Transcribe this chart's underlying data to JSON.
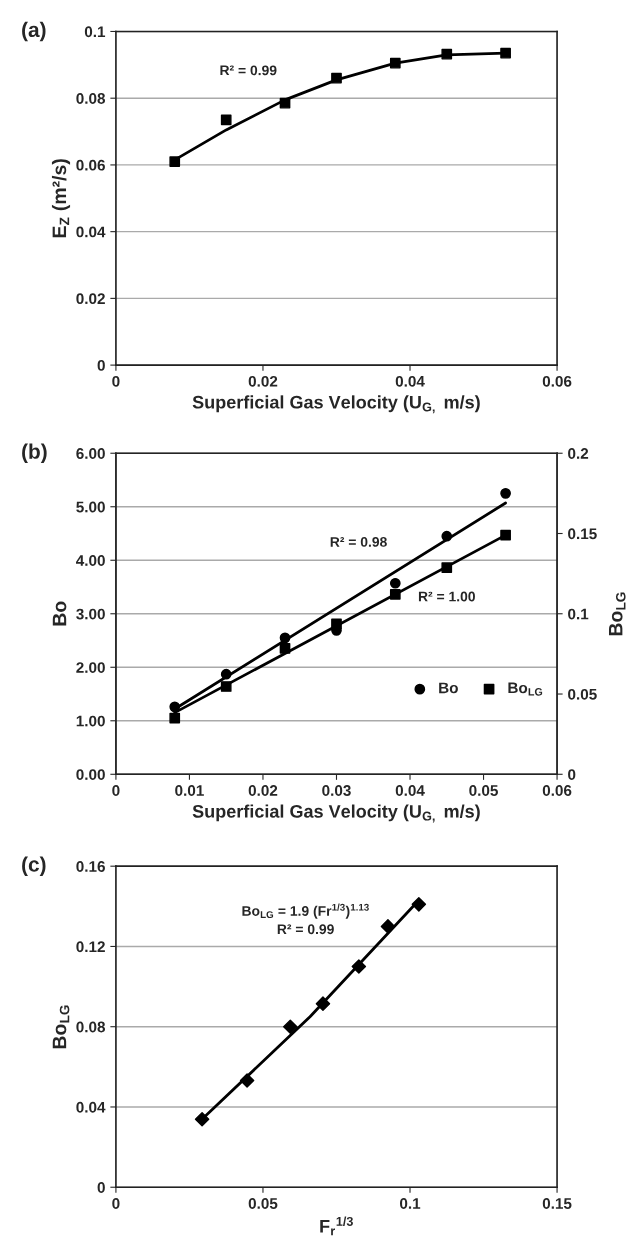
{
  "chart_data": [
    {
      "type": "scatter",
      "title": "(a)",
      "xlabel": "Superficial Gas Velocity (U$_{G,}$ m/s)",
      "ylabel": "E$_{Z}$ (m²/s)",
      "annotations": [
        "R² = 0.99"
      ],
      "xlim": [
        0,
        0.06
      ],
      "xticks": [
        0,
        0.02,
        0.04,
        0.06
      ],
      "ylim": [
        0,
        0.1
      ],
      "yticks": [
        0,
        0.02,
        0.04,
        0.06,
        0.08,
        0.1
      ],
      "grid": "y",
      "legend": false,
      "series": [
        {
          "marker": "square",
          "color": "#000000",
          "x": [
            0.008,
            0.015,
            0.023,
            0.03,
            0.038,
            0.045,
            0.053
          ],
          "values": [
            0.061,
            0.0735,
            0.0785,
            0.086,
            0.0905,
            0.0932,
            0.0935
          ]
        },
        {
          "type": "line",
          "marker": "none",
          "color": "#000000",
          "x": [
            0.008,
            0.015,
            0.023,
            0.03,
            0.038,
            0.045,
            0.053
          ],
          "values": [
            0.0615,
            0.0705,
            0.0795,
            0.0855,
            0.0905,
            0.093,
            0.0935
          ]
        }
      ]
    },
    {
      "type": "scatter",
      "title": "(b)",
      "xlabel": "Superficial Gas Velocity (U$_{G,}$ m/s)",
      "ylabel": "Bo",
      "y2label": "Bo$_{LG}$",
      "annotations": [
        "R² = 0.98",
        "R² = 1.00"
      ],
      "xlim": [
        0,
        0.06
      ],
      "xticks": [
        0,
        0.01,
        0.02,
        0.03,
        0.04,
        0.05,
        0.06
      ],
      "ylim": [
        0,
        6
      ],
      "yticks": [
        {
          "value": 0,
          "label": "0.00"
        },
        {
          "value": 1,
          "label": "1.00"
        },
        {
          "value": 2,
          "label": "2.00"
        },
        {
          "value": 3,
          "label": "3.00"
        },
        {
          "value": 4,
          "label": "4.00"
        },
        {
          "value": 5,
          "label": "5.00"
        },
        {
          "value": 6,
          "label": "6.00"
        }
      ],
      "y2lim": [
        0,
        0.2
      ],
      "y2ticks": [
        0,
        0.05,
        0.1,
        0.15,
        0.2
      ],
      "grid": "y",
      "legend": "bottom right",
      "series": [
        {
          "name": "Bo",
          "marker": "circle",
          "color": "#000000",
          "x": [
            0.008,
            0.015,
            0.023,
            0.03,
            0.038,
            0.045,
            0.053
          ],
          "values": [
            1.26,
            1.87,
            2.55,
            2.69,
            3.57,
            4.45,
            5.25
          ]
        },
        {
          "name": "Bo$_{LG}$",
          "axis": "y2",
          "marker": "square",
          "color": "#000000",
          "x": [
            0.008,
            0.015,
            0.023,
            0.03,
            0.038,
            0.045,
            0.053
          ],
          "values": [
            0.035,
            0.0547,
            0.0784,
            0.0937,
            0.1121,
            0.1287,
            0.149
          ]
        },
        {
          "type": "line",
          "marker": "none",
          "color": "#000000",
          "x": [
            0.008,
            0.053
          ],
          "values": [
            1.22,
            5.07
          ]
        },
        {
          "type": "line",
          "axis": "y2",
          "marker": "none",
          "color": "#000000",
          "x": [
            0.008,
            0.053
          ],
          "values": [
            0.0384,
            0.149
          ]
        }
      ]
    },
    {
      "type": "scatter",
      "title": "(c)",
      "xlabel": "F$_{r}$$^{1/3}$",
      "ylabel": "Bo$_{LG}$",
      "annotations": [
        "Bo$_{LG}$ = 1.9 (Fr$^{1/3}$)$^{1.13}$",
        "R² = 0.99"
      ],
      "xlim": [
        0,
        0.15
      ],
      "xticks": [
        0,
        0.05,
        0.1,
        0.15
      ],
      "ylim": [
        0,
        0.16
      ],
      "yticks": [
        0,
        0.04,
        0.08,
        0.12,
        0.16
      ],
      "grid": "y",
      "legend": false,
      "series": [
        {
          "marker": "diamond",
          "color": "#000000",
          "x": [
            0.0293,
            0.0446,
            0.0593,
            0.0704,
            0.0826,
            0.0925,
            0.103
          ],
          "values": [
            0.0339,
            0.0532,
            0.08,
            0.0915,
            0.11,
            0.13,
            0.141
          ]
        },
        {
          "type": "line",
          "marker": "none",
          "color": "#000000",
          "x": [
            0.029,
            0.066,
            0.103
          ],
          "values": [
            0.0335,
            0.085,
            0.143
          ]
        }
      ]
    }
  ]
}
